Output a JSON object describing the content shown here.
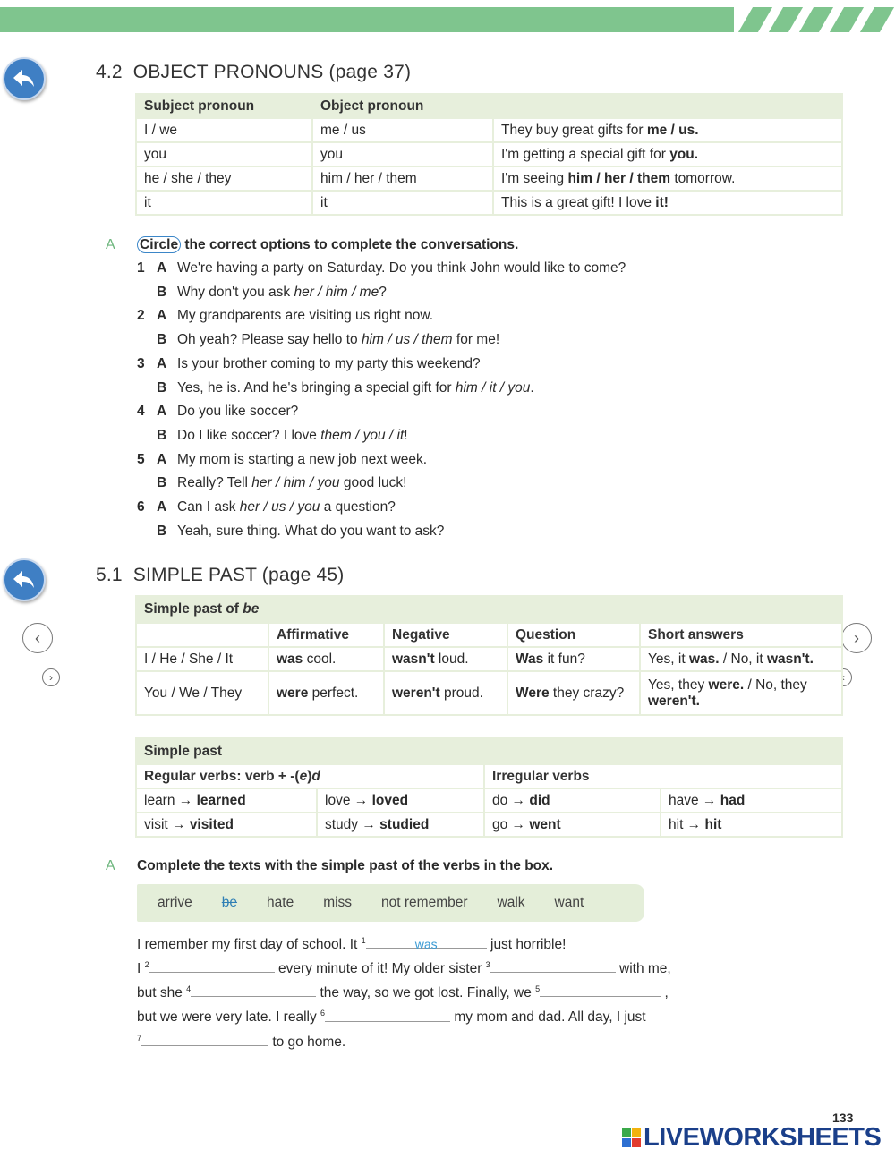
{
  "colors": {
    "band": "#7fc58e",
    "accent_blue": "#3f7fc4",
    "table_bg": "#e7efdc",
    "answer": "#3b9bd4"
  },
  "sec1": {
    "num": "4.2",
    "title": "OBJECT PRONOUNS (page 37)",
    "headers": [
      "Subject pronoun",
      "Object pronoun",
      ""
    ],
    "rows": [
      {
        "s": "I / we",
        "o": "me / us",
        "e": [
          {
            "t": "They buy great gifts for "
          },
          {
            "t": "me / us.",
            "s": "b"
          }
        ]
      },
      {
        "s": "you",
        "o": "you",
        "e": [
          {
            "t": "I'm getting a special gift for "
          },
          {
            "t": "you.",
            "s": "b"
          }
        ]
      },
      {
        "s": "he / she / they",
        "o": "him / her / them",
        "e": [
          {
            "t": "I'm seeing "
          },
          {
            "t": "him / her / them",
            "s": "b"
          },
          {
            "t": " tomorrow."
          }
        ]
      },
      {
        "s": "it",
        "o": "it",
        "e": [
          {
            "t": "This is a great gift! I love "
          },
          {
            "t": "it!",
            "s": "b"
          }
        ]
      }
    ]
  },
  "ex1": {
    "letter": "A",
    "circle_word": "Circle",
    "instruction": " the correct options to complete the conversations.",
    "items": [
      {
        "n": "1",
        "a": [
          {
            "t": "We're having a party on Saturday. Do you think John would like to come?"
          }
        ],
        "b": [
          {
            "t": "Why don't you ask "
          },
          {
            "t": "her / him / me",
            "s": "i"
          },
          {
            "t": "?"
          }
        ]
      },
      {
        "n": "2",
        "a": [
          {
            "t": "My grandparents are visiting us right now."
          }
        ],
        "b": [
          {
            "t": "Oh yeah? Please say hello to "
          },
          {
            "t": "him / us / them",
            "s": "i"
          },
          {
            "t": " for me!"
          }
        ]
      },
      {
        "n": "3",
        "a": [
          {
            "t": "Is your brother coming to my party this weekend?"
          }
        ],
        "b": [
          {
            "t": "Yes, he is. And he's bringing a special gift for "
          },
          {
            "t": "him / it / you",
            "s": "i"
          },
          {
            "t": "."
          }
        ]
      },
      {
        "n": "4",
        "a": [
          {
            "t": "Do you like soccer?"
          }
        ],
        "b": [
          {
            "t": "Do I like soccer? I love "
          },
          {
            "t": "them / you / it",
            "s": "i"
          },
          {
            "t": "!"
          }
        ]
      },
      {
        "n": "5",
        "a": [
          {
            "t": "My mom is starting a new job next week."
          }
        ],
        "b": [
          {
            "t": "Really? Tell "
          },
          {
            "t": "her / him / you",
            "s": "i"
          },
          {
            "t": " good luck!"
          }
        ]
      },
      {
        "n": "6",
        "a": [
          {
            "t": "Can I ask "
          },
          {
            "t": "her / us / you",
            "s": "i"
          },
          {
            "t": " a question?"
          }
        ],
        "b": [
          {
            "t": "Yeah, sure thing. What do you want to ask?"
          }
        ]
      }
    ],
    "speakerA": "A",
    "speakerB": "B"
  },
  "sec2": {
    "num": "5.1",
    "title": "SIMPLE PAST (page 45)",
    "be_table": {
      "title": [
        {
          "t": "Simple past of "
        },
        {
          "t": "be",
          "s": "i"
        }
      ],
      "headers": [
        "",
        "Affirmative",
        "Negative",
        "Question",
        "Short answers"
      ],
      "rows": [
        [
          [
            {
              "t": "I / He / She / It"
            }
          ],
          [
            {
              "t": "was",
              "s": "b"
            },
            {
              "t": " cool."
            }
          ],
          [
            {
              "t": "wasn't",
              "s": "b"
            },
            {
              "t": " loud."
            }
          ],
          [
            {
              "t": "Was",
              "s": "b"
            },
            {
              "t": " it fun?"
            }
          ],
          [
            {
              "t": "Yes, it "
            },
            {
              "t": "was.",
              "s": "b"
            },
            {
              "t": " / No, it "
            },
            {
              "t": "wasn't.",
              "s": "b"
            }
          ]
        ],
        [
          [
            {
              "t": "You / We / They"
            }
          ],
          [
            {
              "t": "were",
              "s": "b"
            },
            {
              "t": " perfect."
            }
          ],
          [
            {
              "t": "weren't",
              "s": "b"
            },
            {
              "t": " proud."
            }
          ],
          [
            {
              "t": "Were",
              "s": "b"
            },
            {
              "t": " they crazy?"
            }
          ],
          [
            {
              "t": "Yes, they "
            },
            {
              "t": "were.",
              "s": "b"
            },
            {
              "t": " / No, they "
            },
            {
              "t": "weren't.",
              "s": "b"
            }
          ]
        ]
      ]
    },
    "past_table": {
      "title": "Simple past",
      "regular_header": [
        {
          "t": "Regular verbs: verb + -("
        },
        {
          "t": "e",
          "s": "i"
        },
        {
          "t": ")"
        },
        {
          "t": "d",
          "s": "i"
        }
      ],
      "irregular_header": "Irregular verbs",
      "rows": [
        [
          [
            {
              "t": "learn → "
            },
            {
              "t": "learned",
              "s": "b"
            }
          ],
          [
            {
              "t": "love → "
            },
            {
              "t": "loved",
              "s": "b"
            }
          ],
          [
            {
              "t": "do → "
            },
            {
              "t": "did",
              "s": "b"
            }
          ],
          [
            {
              "t": "have → "
            },
            {
              "t": "had",
              "s": "b"
            }
          ]
        ],
        [
          [
            {
              "t": "visit → "
            },
            {
              "t": "visited",
              "s": "b"
            }
          ],
          [
            {
              "t": "study → "
            },
            {
              "t": "studied",
              "s": "b"
            }
          ],
          [
            {
              "t": "go → "
            },
            {
              "t": "went",
              "s": "b"
            }
          ],
          [
            {
              "t": "hit → "
            },
            {
              "t": "hit",
              "s": "b"
            }
          ]
        ]
      ]
    }
  },
  "ex2": {
    "letter": "A",
    "instruction": "Complete the texts with the simple past of the verbs in the box.",
    "words": [
      "arrive",
      "be",
      "hate",
      "miss",
      "not remember",
      "walk",
      "want"
    ],
    "p": {
      "l1a": "I remember my first day of school. It ",
      "b1": "was",
      "l1b": " just horrible!",
      "l2a": "I ",
      "l2b": " every minute of it! My older sister ",
      "l2c": " with me,",
      "l3a": "but she ",
      "l3b": " the way, so we got lost. Finally, we ",
      "l3c": " ,",
      "l4a": "but we were very late. I really ",
      "l4b": " my mom and dad. All day, I just",
      "l5b": " to go home."
    },
    "nums": [
      "1",
      "2",
      "3",
      "4",
      "5",
      "6",
      "7"
    ]
  },
  "footer": {
    "page": "133",
    "logo": "LIVEWORKSHEETS"
  },
  "icons": [
    "back-arrow-icon",
    "chevron-left-icon",
    "chevron-right-icon"
  ]
}
